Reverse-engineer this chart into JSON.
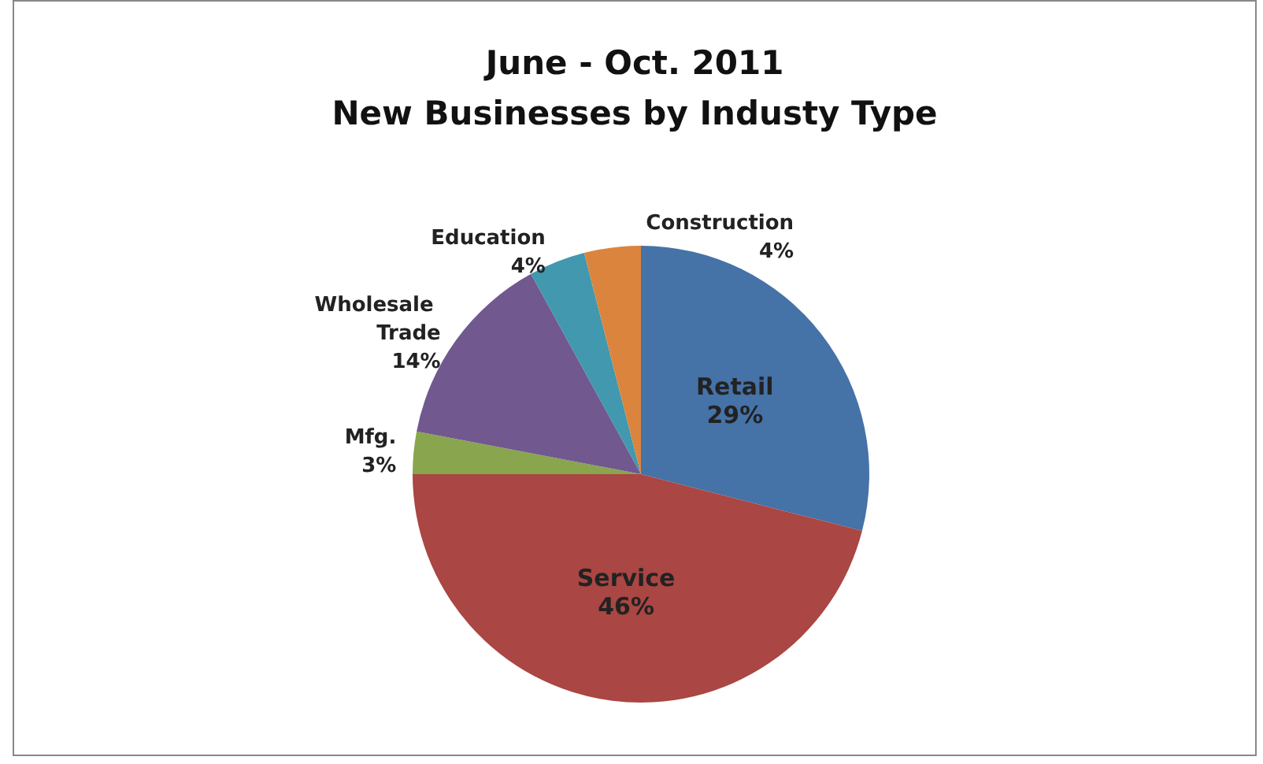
{
  "chart_data": {
    "type": "pie",
    "title": "June - Oct. 2011\nNew Businesses by Industy Type",
    "categories": [
      "Retail",
      "Service",
      "Mfg.",
      "Wholesale Trade",
      "Education",
      "Construction"
    ],
    "values": [
      29,
      46,
      3,
      14,
      4,
      4
    ],
    "colors": [
      "#4572a7",
      "#aa4643",
      "#89a54e",
      "#71588f",
      "#4198af",
      "#db843d"
    ],
    "value_labels": [
      "29%",
      "46%",
      "3%",
      "14%",
      "4%",
      "4%"
    ],
    "legend": false
  }
}
